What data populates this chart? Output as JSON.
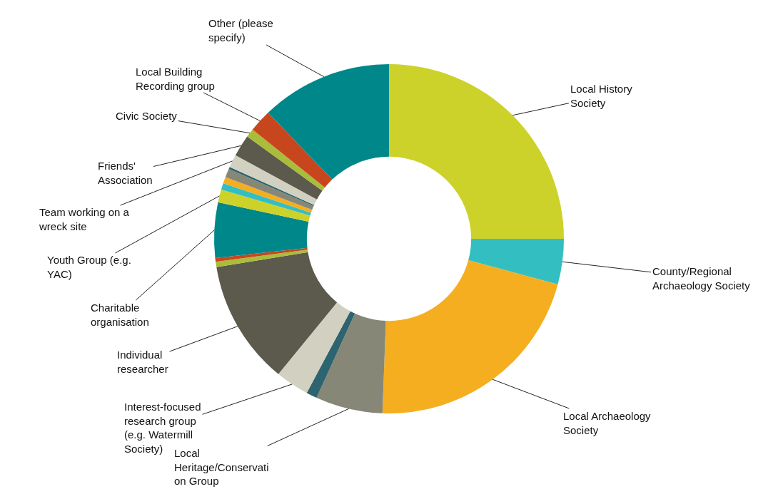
{
  "chart_data": {
    "type": "donut",
    "categories": [
      "Local History Society",
      "County/Regional Archaeology Society",
      "Local Archaeology Society",
      "Local Heritage/Conservation Group",
      null,
      "Interest-focused research group (e.g. Watermill Society)",
      "Individual researcher",
      null,
      null,
      "Charitable organisation",
      "Youth Group (e.g. YAC)",
      null,
      null,
      null,
      null,
      "Team working on a wreck site",
      "Friends' Association",
      "Civic Society",
      "Local Building Recording group",
      "Other (please specify)"
    ],
    "values": [
      25,
      4.2,
      21.4,
      6.2,
      1.0,
      3.1,
      11.5,
      0.5,
      0.35,
      5.1,
      1.2,
      0.6,
      0.6,
      0.8,
      0.2,
      1.2,
      2.0,
      0.8,
      2.1,
      12.15
    ],
    "colors": [
      "#cdd22a",
      "#33bfc1",
      "#f5ae1f",
      "#878778",
      "#2d6470",
      "#d2d0c0",
      "#5b5a4c",
      "#a9bd3a",
      "#c8461e",
      "#00878a",
      "#cdd22a",
      "#33bfc1",
      "#f5ae1f",
      "#878778",
      "#2d6470",
      "#d2d0c0",
      "#5b5a4c",
      "#a9bd3a",
      "#c8461e",
      "#00878a"
    ],
    "legend": false
  }
}
